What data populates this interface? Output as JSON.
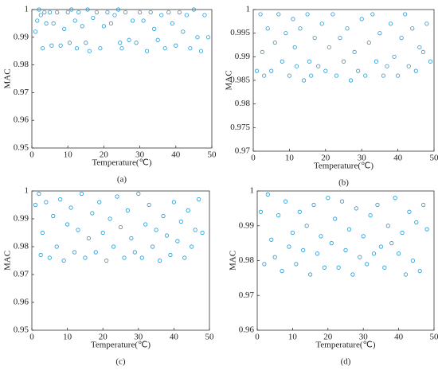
{
  "chart_data": [
    {
      "type": "scatter",
      "caption": "(a)",
      "xlabel": "Temperature(℃)",
      "ylabel": "MAC",
      "color": "#1f9ad6",
      "xlim": [
        0,
        50
      ],
      "xticks": [
        0,
        10,
        20,
        30,
        40,
        50
      ],
      "ylim": [
        0.95,
        1
      ],
      "yticks": [
        0.95,
        0.96,
        0.97,
        0.98,
        0.99,
        1
      ],
      "series": [
        {
          "x": [
            1,
            1.5,
            2,
            2.5,
            3,
            3.5,
            4,
            5,
            5.5,
            6,
            7,
            8,
            9,
            10,
            10.5,
            11,
            12,
            12.5,
            13,
            14,
            15,
            15.5,
            16,
            17,
            18,
            19,
            20,
            21,
            22,
            23,
            24,
            24.5,
            25,
            26,
            27,
            28,
            29,
            30,
            31,
            32,
            33,
            34,
            35,
            36,
            37,
            38,
            39,
            40,
            41,
            42,
            43,
            44,
            45,
            46,
            47,
            48,
            49
          ],
          "y": [
            0.992,
            0.996,
            1,
            0.998,
            0.986,
            0.999,
            0.995,
            0.999,
            0.987,
            0.995,
            0.999,
            0.987,
            0.993,
            0.999,
            0.988,
            1,
            0.996,
            0.986,
            0.999,
            0.994,
            0.988,
            1,
            0.985,
            0.997,
            0.999,
            0.986,
            0.994,
            0.999,
            0.995,
            0.998,
            1,
            0.988,
            0.986,
            0.999,
            0.989,
            0.996,
            0.988,
            0.999,
            0.996,
            0.985,
            0.999,
            0.993,
            0.989,
            0.998,
            0.986,
            0.999,
            0.995,
            0.987,
            0.999,
            0.992,
            0.998,
            0.986,
            1,
            0.99,
            0.985,
            0.998,
            0.99
          ]
        }
      ]
    },
    {
      "type": "scatter",
      "caption": "(b)",
      "xlabel": "Temperature(℃)",
      "ylabel": "MAC",
      "color": "#1f9ad6",
      "xlim": [
        0,
        50
      ],
      "xticks": [
        0,
        10,
        20,
        30,
        40,
        50
      ],
      "ylim": [
        0.97,
        1
      ],
      "yticks": [
        0.97,
        0.975,
        0.98,
        0.985,
        0.99,
        0.995,
        1
      ],
      "series": [
        {
          "x": [
            1,
            2,
            2.5,
            3,
            4,
            5,
            6,
            7,
            8,
            9,
            10,
            11,
            11.5,
            12,
            13,
            14,
            15,
            15.5,
            16,
            17,
            18,
            19,
            20,
            21,
            22,
            23,
            24,
            25,
            26,
            27,
            28,
            29,
            30,
            31,
            32,
            33,
            34,
            35,
            36,
            37,
            38,
            39,
            40,
            41,
            42,
            43,
            44,
            45,
            46,
            47,
            48,
            49
          ],
          "y": [
            0.987,
            0.999,
            0.991,
            0.986,
            0.996,
            0.987,
            0.993,
            0.999,
            0.989,
            0.995,
            0.986,
            0.998,
            0.992,
            0.988,
            0.996,
            0.985,
            0.999,
            0.989,
            0.986,
            0.994,
            0.988,
            0.997,
            0.987,
            0.992,
            0.999,
            0.986,
            0.994,
            0.989,
            0.996,
            0.985,
            0.991,
            0.987,
            0.998,
            0.986,
            0.993,
            0.999,
            0.989,
            0.995,
            0.986,
            0.988,
            0.997,
            0.99,
            0.986,
            0.994,
            0.999,
            0.988,
            0.996,
            0.987,
            0.992,
            0.991,
            0.997,
            0.989
          ]
        }
      ]
    },
    {
      "type": "scatter",
      "caption": "(c)",
      "xlabel": "Temperature(℃)",
      "ylabel": "MAC",
      "color": "#1f9ad6",
      "xlim": [
        0,
        50
      ],
      "xticks": [
        0,
        10,
        20,
        30,
        40,
        50
      ],
      "ylim": [
        0.95,
        1
      ],
      "yticks": [
        0.95,
        0.96,
        0.97,
        0.98,
        0.99,
        1
      ],
      "series": [
        {
          "x": [
            1,
            2,
            2.5,
            3,
            4,
            5,
            6,
            7,
            8,
            9,
            10,
            11,
            12,
            13,
            14,
            15,
            16,
            17,
            18,
            19,
            20,
            21,
            22,
            23,
            24,
            25,
            26,
            27,
            28,
            29,
            30,
            31,
            32,
            33,
            34,
            35,
            36,
            37,
            38,
            39,
            40,
            41,
            42,
            43,
            44,
            45,
            46,
            47,
            48
          ],
          "y": [
            0.995,
            0.999,
            0.977,
            0.985,
            0.996,
            0.976,
            0.991,
            0.98,
            0.997,
            0.975,
            0.988,
            0.994,
            0.978,
            0.986,
            0.999,
            0.976,
            0.983,
            0.992,
            0.978,
            0.996,
            0.985,
            0.975,
            0.99,
            0.98,
            0.998,
            0.987,
            0.976,
            0.993,
            0.983,
            0.978,
            0.999,
            0.976,
            0.988,
            0.995,
            0.98,
            0.986,
            0.975,
            0.991,
            0.984,
            0.977,
            0.996,
            0.982,
            0.989,
            0.976,
            0.993,
            0.98,
            0.986,
            0.997,
            0.985
          ]
        }
      ]
    },
    {
      "type": "scatter",
      "caption": "(d)",
      "xlabel": "Temperature(℃)",
      "ylabel": "MAC",
      "color": "#1f9ad6",
      "xlim": [
        0,
        50
      ],
      "xticks": [
        0,
        10,
        20,
        30,
        40,
        50
      ],
      "ylim": [
        0.96,
        1
      ],
      "yticks": [
        0.96,
        0.97,
        0.98,
        0.99,
        1
      ],
      "series": [
        {
          "x": [
            1,
            2,
            3,
            4,
            5,
            6,
            7,
            8,
            9,
            10,
            11,
            12,
            13,
            14,
            15,
            16,
            17,
            18,
            19,
            20,
            21,
            22,
            23,
            24,
            25,
            26,
            27,
            28,
            29,
            30,
            31,
            32,
            33,
            34,
            35,
            36,
            37,
            38,
            39,
            40,
            41,
            42,
            43,
            44,
            45,
            46,
            47,
            48
          ],
          "y": [
            0.994,
            0.979,
            0.999,
            0.986,
            0.981,
            0.993,
            0.977,
            0.997,
            0.984,
            0.988,
            0.979,
            0.994,
            0.983,
            0.99,
            0.976,
            0.996,
            0.982,
            0.987,
            0.978,
            0.998,
            0.985,
            0.992,
            0.978,
            0.997,
            0.983,
            0.989,
            0.976,
            0.995,
            0.981,
            0.987,
            0.979,
            0.993,
            0.982,
            0.996,
            0.984,
            0.978,
            0.99,
            0.985,
            0.998,
            0.982,
            0.988,
            0.976,
            0.994,
            0.98,
            0.991,
            0.977,
            0.996,
            0.989
          ]
        }
      ]
    }
  ]
}
